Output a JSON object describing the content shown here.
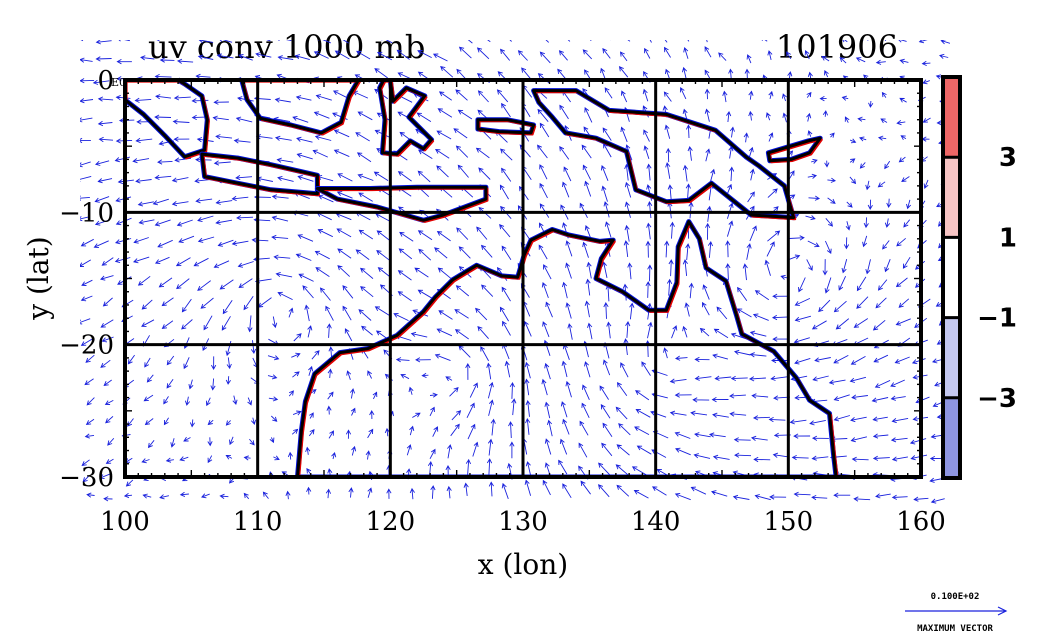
{
  "chart_data": {
    "type": "vector_contour_map",
    "title": "uv conv 1000 mb",
    "timestamp": "101906",
    "xlabel": "x (lon)",
    "ylabel": "y (lat)",
    "xlim": [
      100,
      160
    ],
    "ylim": [
      -30,
      0
    ],
    "x_ticks": [
      "100",
      "110",
      "120",
      "130",
      "140",
      "150",
      "160"
    ],
    "y_ticks": [
      "0",
      "−10",
      "−20",
      "−30"
    ],
    "y_tick_values": [
      0,
      -10,
      -20,
      -30
    ],
    "x_tick_values": [
      100,
      110,
      120,
      130,
      140,
      150,
      160
    ],
    "gridlines_x": [
      110,
      120,
      130,
      140,
      150
    ],
    "gridlines_y": [
      -10,
      -20
    ],
    "grid": true,
    "corner_label": "E0",
    "colorbar": {
      "levels": [
        "3",
        "1",
        "−1",
        "−3"
      ],
      "level_values": [
        3,
        1,
        -1,
        -3
      ],
      "bands": [
        {
          "color": "#ee6666"
        },
        {
          "color": "#f7c4c4"
        },
        {
          "color": "#ffffff"
        },
        {
          "color": "#c4c8f0"
        },
        {
          "color": "#8e95e0"
        }
      ]
    },
    "reference_vector": {
      "value": "0.100E+02",
      "label": "MAXIMUM VECTOR"
    },
    "colors": {
      "vectors": "#1a22dd",
      "positive_contour": "#e00000",
      "negative_contour": "#0010d8",
      "coastline": "#000000"
    }
  }
}
